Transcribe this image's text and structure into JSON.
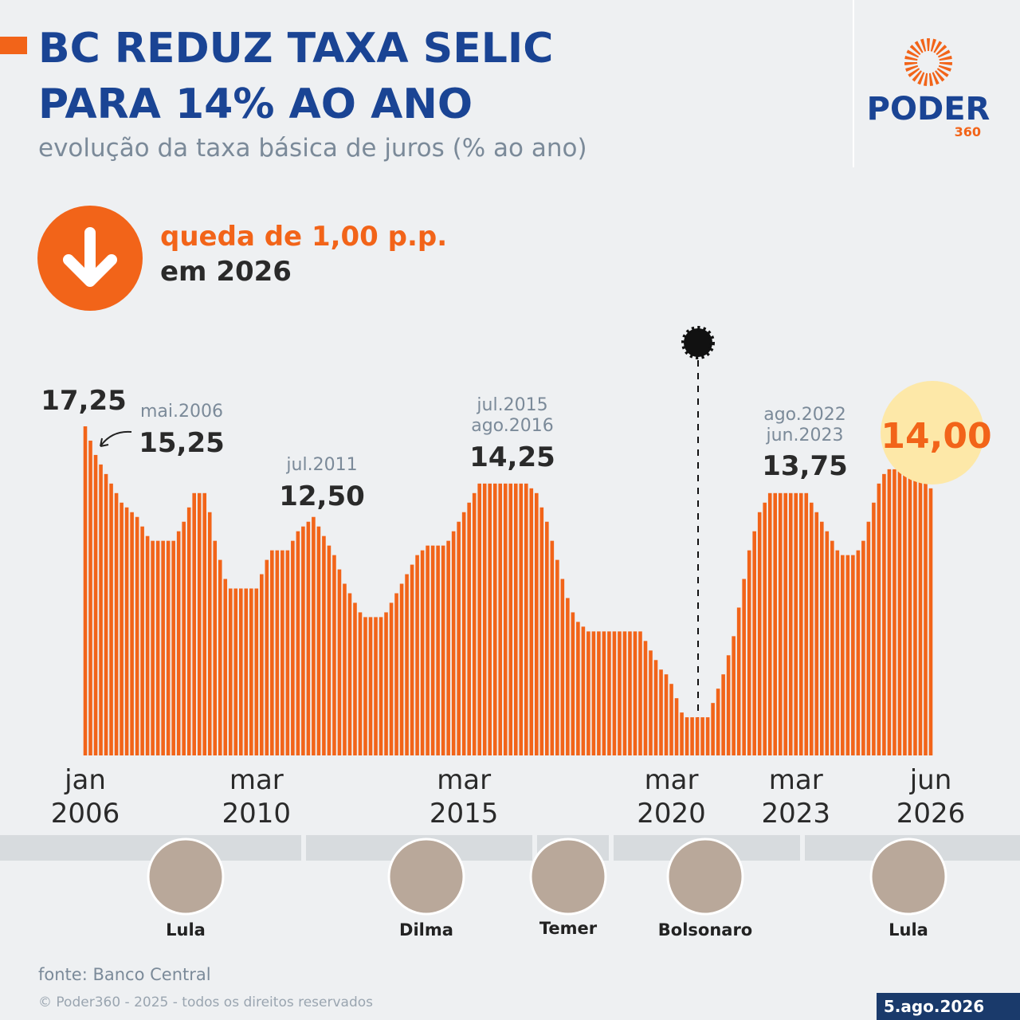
{
  "header": {
    "title_line1": "BC REDUZ TAXA SELIC",
    "title_line2": "PARA 14% AO ANO",
    "subtitle": "evolução da taxa básica de juros (% ao ano)"
  },
  "logo": {
    "name": "PODER",
    "number": "360"
  },
  "highlight": {
    "line1": "queda de 1,00 p.p.",
    "line2": "em 2026"
  },
  "chart_data": {
    "type": "bar",
    "color": "#f26419",
    "ylim": [
      0,
      17.25
    ],
    "categories": [
      "jan 2006",
      null,
      null,
      null,
      null,
      null,
      null,
      null,
      null,
      null,
      null,
      null,
      null,
      null,
      null,
      null,
      null,
      null,
      null,
      null,
      null,
      null,
      null,
      null,
      null,
      null,
      null,
      null,
      null,
      null,
      null,
      null,
      null,
      "mar 2010",
      null,
      null,
      null,
      null,
      null,
      null,
      null,
      null,
      null,
      null,
      null,
      null,
      null,
      null,
      null,
      null,
      null,
      null,
      null,
      null,
      null,
      null,
      null,
      null,
      null,
      null,
      null,
      null,
      null,
      null,
      null,
      null,
      null,
      null,
      null,
      null,
      null,
      null,
      null,
      "mar 2015",
      null,
      null,
      null,
      null,
      null,
      null,
      null,
      null,
      null,
      null,
      null,
      null,
      null,
      null,
      null,
      null,
      null,
      null,
      null,
      null,
      null,
      null,
      null,
      null,
      null,
      null,
      null,
      null,
      null,
      null,
      null,
      null,
      null,
      null,
      null,
      null,
      null,
      null,
      null,
      "mar 2020",
      null,
      null,
      null,
      null,
      null,
      null,
      null,
      null,
      null,
      null,
      null,
      null,
      null,
      null,
      null,
      null,
      null,
      null,
      null,
      null,
      null,
      null,
      null,
      "mar 2023",
      null,
      null,
      null,
      null,
      null,
      null,
      null,
      null,
      null,
      null,
      null,
      null,
      null,
      null,
      null,
      null,
      null,
      null,
      null,
      null,
      null,
      null,
      null,
      null,
      null,
      "jun 2026"
    ],
    "values": [
      17.25,
      16.5,
      15.75,
      15.25,
      14.75,
      14.25,
      13.75,
      13.25,
      13,
      12.75,
      12.5,
      12,
      11.5,
      11.25,
      11.25,
      11.25,
      11.25,
      11.25,
      11.75,
      12.25,
      13,
      13.75,
      13.75,
      13.75,
      12.75,
      11.25,
      10.25,
      9.25,
      8.75,
      8.75,
      8.75,
      8.75,
      8.75,
      8.75,
      9.5,
      10.25,
      10.75,
      10.75,
      10.75,
      10.75,
      11.25,
      11.75,
      12,
      12.25,
      12.5,
      12,
      11.5,
      11,
      10.5,
      9.75,
      9,
      8.5,
      8,
      7.5,
      7.25,
      7.25,
      7.25,
      7.25,
      7.5,
      8,
      8.5,
      9,
      9.5,
      10,
      10.5,
      10.75,
      11,
      11,
      11,
      11,
      11.25,
      11.75,
      12.25,
      12.75,
      13.25,
      13.75,
      14.25,
      14.25,
      14.25,
      14.25,
      14.25,
      14.25,
      14.25,
      14.25,
      14.25,
      14.25,
      14,
      13.75,
      13,
      12.25,
      11.25,
      10.25,
      9.25,
      8.25,
      7.5,
      7,
      6.75,
      6.5,
      6.5,
      6.5,
      6.5,
      6.5,
      6.5,
      6.5,
      6.5,
      6.5,
      6.5,
      6.5,
      6,
      5.5,
      5,
      4.5,
      4.25,
      3.75,
      3,
      2.25,
      2,
      2,
      2,
      2,
      2,
      2.75,
      3.5,
      4.25,
      5.25,
      6.25,
      7.75,
      9.25,
      10.75,
      11.75,
      12.75,
      13.25,
      13.75,
      13.75,
      13.75,
      13.75,
      13.75,
      13.75,
      13.75,
      13.75,
      13.25,
      12.75,
      12.25,
      11.75,
      11.25,
      10.75,
      10.5,
      10.5,
      10.5,
      10.75,
      11.25,
      12.25,
      13.25,
      14.25,
      14.75,
      15,
      15,
      15,
      15,
      15,
      15,
      14.5,
      14.25,
      14
    ],
    "value_labels": [
      "17,25",
      null,
      null,
      "15,25",
      null,
      null,
      null,
      null,
      null,
      null,
      null,
      null,
      null,
      null,
      null,
      null,
      null,
      null,
      null,
      null,
      null,
      null,
      null,
      null,
      null,
      null,
      null,
      null,
      null,
      null,
      null,
      null,
      null,
      null,
      null,
      null,
      null,
      null,
      null,
      null,
      null,
      null,
      null,
      null,
      "12,50",
      null,
      null,
      null,
      null,
      null,
      null,
      null,
      null,
      null,
      null,
      null,
      null,
      null,
      null,
      null,
      null,
      null,
      null,
      null,
      null,
      null,
      null,
      null,
      null,
      null,
      null,
      null,
      null,
      null,
      null,
      null,
      "14,25",
      null,
      null,
      null,
      null,
      null,
      null,
      null,
      null,
      null,
      null,
      null,
      null,
      null,
      null,
      null,
      null,
      null,
      null,
      null,
      null,
      null,
      null,
      null,
      null,
      null,
      null,
      null,
      null,
      null,
      null,
      null,
      null,
      null,
      null,
      null,
      null,
      null,
      null,
      null,
      null,
      null,
      null,
      null,
      null,
      null,
      null,
      null,
      null,
      null,
      null,
      null,
      null,
      null,
      null,
      null,
      "13,75",
      null,
      null,
      null,
      null,
      null,
      null,
      null,
      null,
      null,
      null,
      null,
      null,
      null,
      null,
      null,
      null,
      null,
      null,
      null,
      null,
      null,
      null,
      null,
      null,
      null,
      null,
      null,
      null,
      null,
      null,
      "14,00"
    ],
    "annotations": [
      "mai.2006",
      "jul.2011",
      "jul.2015",
      "ago.2016",
      "ago.2022",
      "jun.2023"
    ]
  },
  "presidents": [
    "Lula",
    "Dilma",
    "Temer",
    "Bolsonaro",
    "Lula"
  ],
  "footer": {
    "source": "fonte: Banco Central",
    "copyright": "© Poder360 - 2025 - todos os direitos reservados",
    "date": "5.ago.2026"
  }
}
